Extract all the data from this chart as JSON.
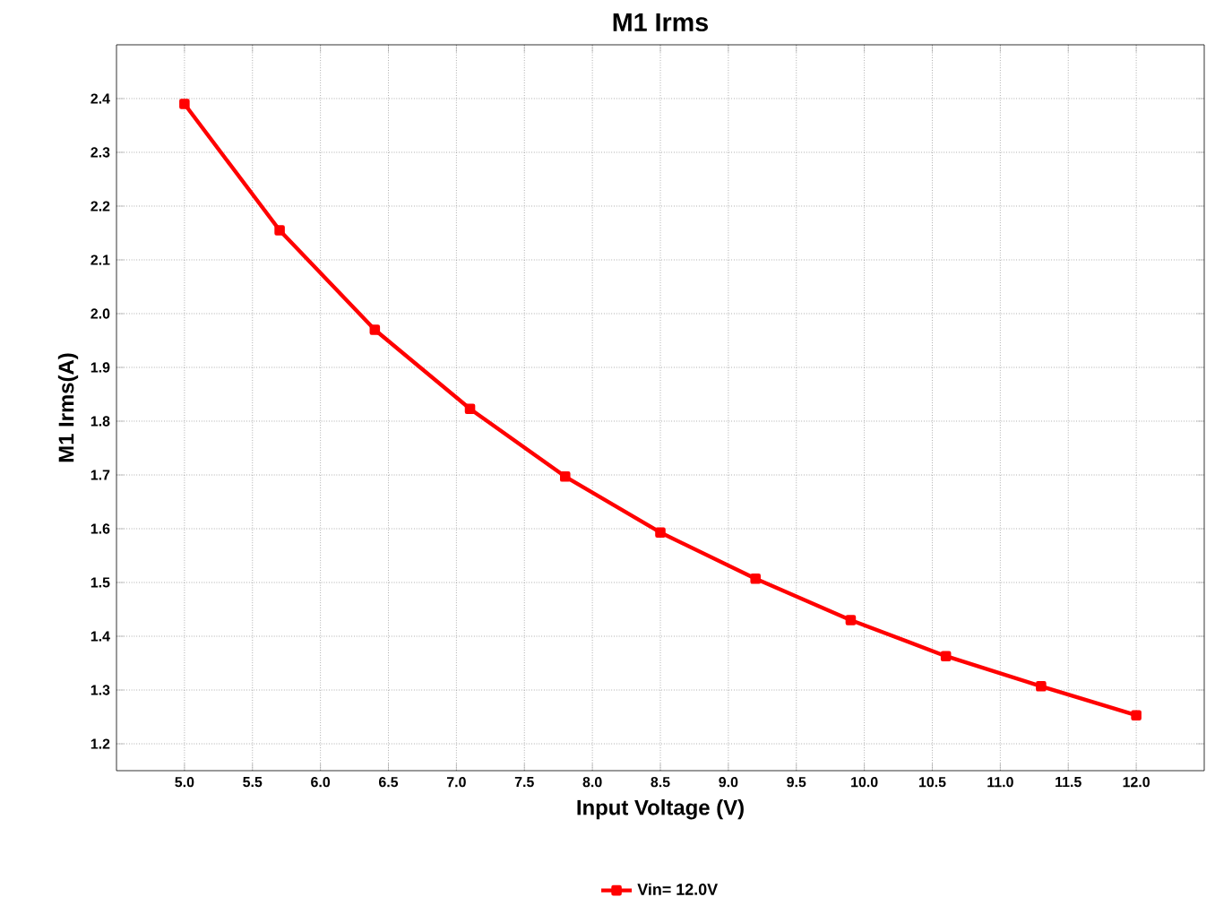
{
  "chart_data": {
    "type": "line",
    "title": "M1 Irms",
    "xlabel": "Input Voltage (V)",
    "ylabel": "M1 Irms(A)",
    "x": [
      5.0,
      5.7,
      6.4,
      7.1,
      7.8,
      8.5,
      9.2,
      9.9,
      10.6,
      11.3,
      12.0
    ],
    "series": [
      {
        "name": "Vin= 12.0V",
        "color": "#ff0000",
        "values": [
          2.39,
          2.155,
          1.97,
          1.823,
          1.697,
          1.593,
          1.507,
          1.43,
          1.363,
          1.307,
          1.253
        ]
      }
    ],
    "xlim": [
      4.5,
      12.5
    ],
    "ylim": [
      1.15,
      2.5
    ],
    "xticks": [
      {
        "value": 5.0,
        "label": "5.0"
      },
      5.5,
      {
        "value": 6.0,
        "label": "6.0"
      },
      6.5,
      {
        "value": 7.0,
        "label": "7.0"
      },
      7.5,
      {
        "value": 8.0,
        "label": "8.0"
      },
      8.5,
      {
        "value": 9.0,
        "label": "9.0"
      },
      9.5,
      {
        "value": 10.0,
        "label": "10.0"
      },
      10.5,
      {
        "value": 11.0,
        "label": "11.0"
      },
      11.5,
      {
        "value": 12.0,
        "label": "12.0"
      }
    ],
    "yticks": [
      1.2,
      1.3,
      1.4,
      1.5,
      1.6,
      1.7,
      1.8,
      1.9,
      {
        "value": 2.0,
        "label": "2.0"
      },
      2.1,
      2.2,
      2.3,
      2.4
    ],
    "grid": true,
    "legend": "bottom",
    "marker": "square",
    "line_style": "solid"
  }
}
